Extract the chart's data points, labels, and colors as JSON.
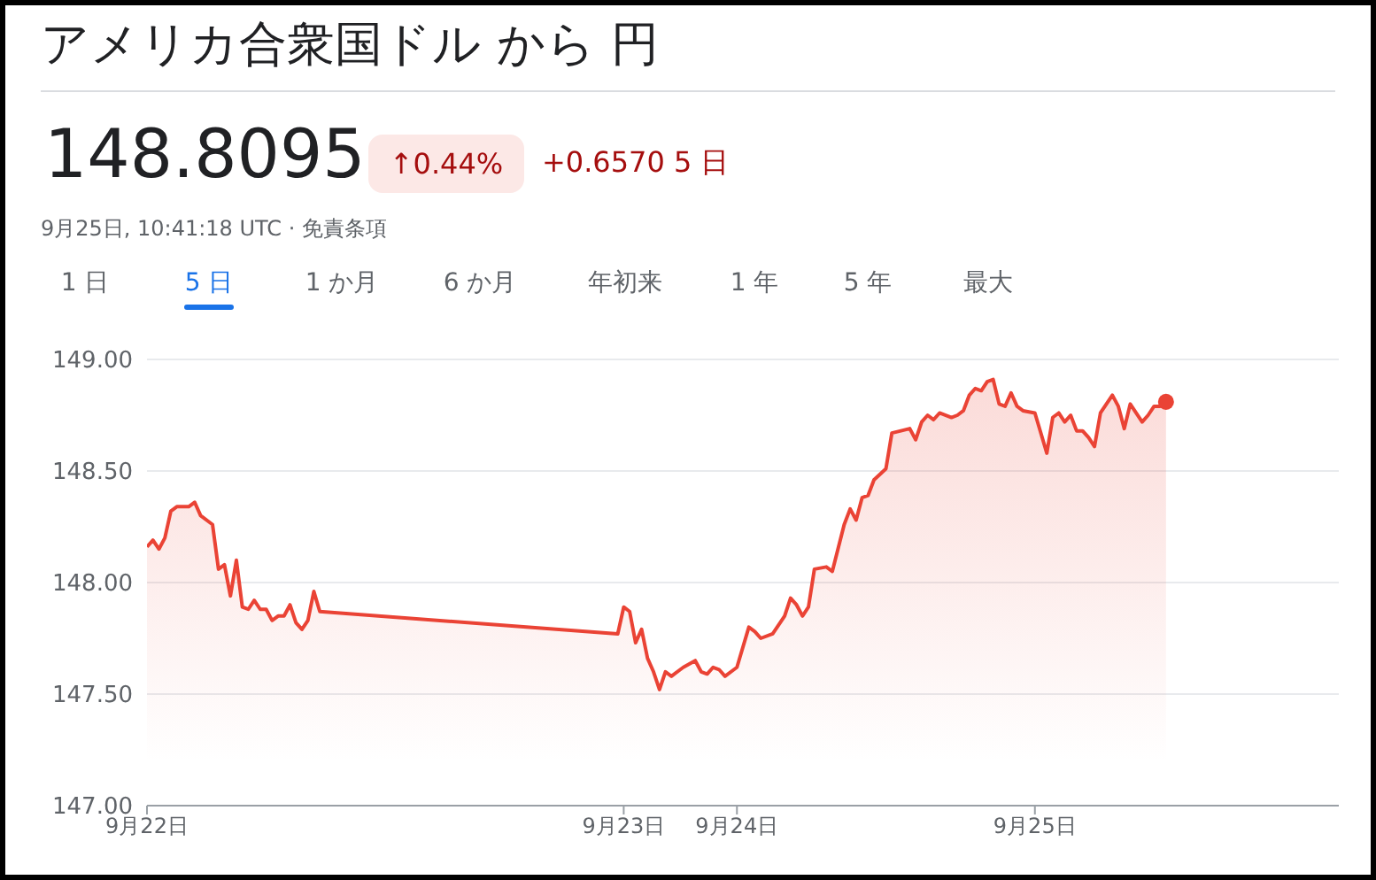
{
  "chart_data": {
    "type": "area",
    "title": "アメリカ合衆国ドル から 円",
    "annotations": [
      "148.8095",
      "↑0.44%",
      "+0.6570 5 日",
      "9月25日, 10:41:18 UTC · 免責条項",
      "1 日",
      "5 日",
      "1 か月",
      "6 か月",
      "年初来",
      "1 年",
      "5 年",
      "最大"
    ],
    "categories": [
      "9月22日",
      null,
      null,
      null,
      null,
      null,
      null,
      null,
      null,
      null,
      null,
      null,
      null,
      null,
      null,
      null,
      null,
      null,
      null,
      null,
      null,
      null,
      null,
      null,
      null,
      null,
      null,
      null,
      null,
      null,
      null,
      null,
      null,
      null,
      null,
      null,
      null,
      null,
      null,
      null,
      null,
      null,
      null,
      null,
      null,
      null,
      null,
      null,
      null,
      null,
      null,
      null,
      null,
      null,
      null,
      null,
      null,
      null,
      null,
      null,
      null,
      null,
      null,
      null,
      null,
      null,
      null,
      null,
      null,
      null,
      null,
      null,
      null,
      null,
      null,
      null,
      null,
      null,
      null,
      null,
      "9月23日",
      null,
      null,
      null,
      null,
      null,
      null,
      null,
      null,
      null,
      null,
      null,
      null,
      null,
      null,
      null,
      null,
      null,
      null,
      "9月24日",
      null,
      null,
      null,
      null,
      null,
      null,
      null,
      null,
      null,
      null,
      null,
      null,
      null,
      null,
      null,
      null,
      null,
      null,
      null,
      null,
      null,
      null,
      null,
      null,
      null,
      null,
      null,
      null,
      null,
      null,
      null,
      null,
      null,
      null,
      null,
      null,
      null,
      null,
      null,
      null,
      null,
      null,
      null,
      null,
      null,
      null,
      null,
      null,
      null,
      "9月25日",
      null,
      null,
      null,
      null,
      null,
      null,
      null,
      null,
      null,
      null,
      null,
      null,
      null,
      null,
      null,
      null,
      null,
      null,
      null,
      null,
      null,
      null,
      null,
      null,
      null,
      null,
      null,
      null,
      null,
      null,
      null,
      null,
      null,
      null,
      null,
      null,
      null,
      null,
      null,
      null,
      null,
      null,
      null,
      null,
      null,
      null,
      null,
      null,
      null,
      null,
      null
    ],
    "ylim": [
      147,
      149
    ],
    "yticks": [
      {
        "value": 147,
        "label": "147.00"
      },
      {
        "value": 147.5,
        "label": "147.50"
      },
      {
        "value": 148,
        "label": "148.00"
      },
      {
        "value": 148.5,
        "label": "148.50"
      },
      {
        "value": 149,
        "label": "149.00"
      }
    ],
    "grid": "y",
    "marker": "none",
    "line_style": "solid",
    "series": [
      {
        "color": "#ea4335",
        "values": [
          148.16,
          148.19,
          148.15,
          148.2,
          148.32,
          148.34,
          null,
          148.34,
          148.36,
          148.3,
          null,
          148.26,
          148.06,
          148.08,
          147.94,
          148.1,
          147.89,
          147.88,
          147.92,
          147.88,
          147.88,
          147.83,
          147.85,
          147.85,
          147.9,
          147.82,
          147.79,
          147.83,
          147.96,
          147.87,
          null,
          null,
          null,
          null,
          null,
          null,
          null,
          null,
          null,
          null,
          null,
          null,
          null,
          null,
          null,
          null,
          null,
          null,
          null,
          null,
          null,
          null,
          null,
          null,
          null,
          null,
          null,
          null,
          null,
          null,
          null,
          null,
          null,
          null,
          null,
          null,
          null,
          null,
          null,
          null,
          null,
          null,
          null,
          null,
          null,
          null,
          null,
          null,
          null,
          147.77,
          147.89,
          147.87,
          147.73,
          147.79,
          147.66,
          147.6,
          147.52,
          147.6,
          147.58,
          null,
          147.62,
          null,
          147.65,
          147.6,
          147.59,
          147.62,
          147.61,
          147.58,
          null,
          147.62,
          null,
          147.8,
          147.78,
          147.75,
          null,
          147.77,
          null,
          147.85,
          147.93,
          147.9,
          147.85,
          147.89,
          148.06,
          null,
          148.07,
          148.05,
          null,
          148.26,
          148.33,
          148.28,
          148.38,
          148.39,
          148.46,
          null,
          148.51,
          148.67,
          null,
          null,
          148.69,
          148.64,
          148.72,
          148.75,
          148.73,
          148.76,
          null,
          148.74,
          148.75,
          148.77,
          148.84,
          148.87,
          148.86,
          148.9,
          148.91,
          148.8,
          148.79,
          148.85,
          148.79,
          148.77,
          null,
          148.76,
          null,
          148.58,
          148.74,
          148.76,
          148.72,
          148.75,
          148.68,
          148.68,
          148.65,
          148.61,
          148.76,
          148.8,
          148.84,
          148.79,
          148.69,
          148.8,
          null,
          148.72,
          148.75,
          148.79,
          148.79,
          148.81,
          null,
          null,
          null,
          null,
          null,
          null,
          null,
          null,
          null,
          null,
          null,
          null,
          null,
          null,
          null,
          null,
          null,
          null,
          null,
          null,
          null,
          null,
          null,
          null,
          null,
          null,
          null,
          null,
          null
        ]
      },
      {
        "type": "scatter",
        "marker": "circle",
        "color": "#ea4335",
        "values": [
          null,
          null,
          null,
          null,
          null,
          null,
          null,
          null,
          null,
          null,
          null,
          null,
          null,
          null,
          null,
          null,
          null,
          null,
          null,
          null,
          null,
          null,
          null,
          null,
          null,
          null,
          null,
          null,
          null,
          null,
          null,
          null,
          null,
          null,
          null,
          null,
          null,
          null,
          null,
          null,
          null,
          null,
          null,
          null,
          null,
          null,
          null,
          null,
          null,
          null,
          null,
          null,
          null,
          null,
          null,
          null,
          null,
          null,
          null,
          null,
          null,
          null,
          null,
          null,
          null,
          null,
          null,
          null,
          null,
          null,
          null,
          null,
          null,
          null,
          null,
          null,
          null,
          null,
          null,
          null,
          null,
          null,
          null,
          null,
          null,
          null,
          null,
          null,
          null,
          null,
          null,
          null,
          null,
          null,
          null,
          null,
          null,
          null,
          null,
          null,
          null,
          null,
          null,
          null,
          null,
          null,
          null,
          null,
          null,
          null,
          null,
          null,
          null,
          null,
          null,
          null,
          null,
          null,
          null,
          null,
          null,
          null,
          null,
          null,
          null,
          null,
          null,
          null,
          null,
          null,
          null,
          null,
          null,
          null,
          null,
          null,
          null,
          null,
          null,
          null,
          null,
          null,
          null,
          null,
          null,
          null,
          null,
          null,
          null,
          null,
          null,
          null,
          null,
          null,
          null,
          null,
          null,
          null,
          null,
          null,
          null,
          null,
          null,
          null,
          null,
          null,
          null,
          null,
          null,
          null,
          null,
          148.81,
          null,
          null,
          null,
          null,
          null,
          null,
          null,
          null,
          null,
          null,
          null,
          null,
          null,
          null,
          null,
          null,
          null,
          null,
          null,
          null,
          null,
          null,
          null,
          null,
          null,
          null,
          null,
          null,
          null
        ]
      }
    ]
  }
}
